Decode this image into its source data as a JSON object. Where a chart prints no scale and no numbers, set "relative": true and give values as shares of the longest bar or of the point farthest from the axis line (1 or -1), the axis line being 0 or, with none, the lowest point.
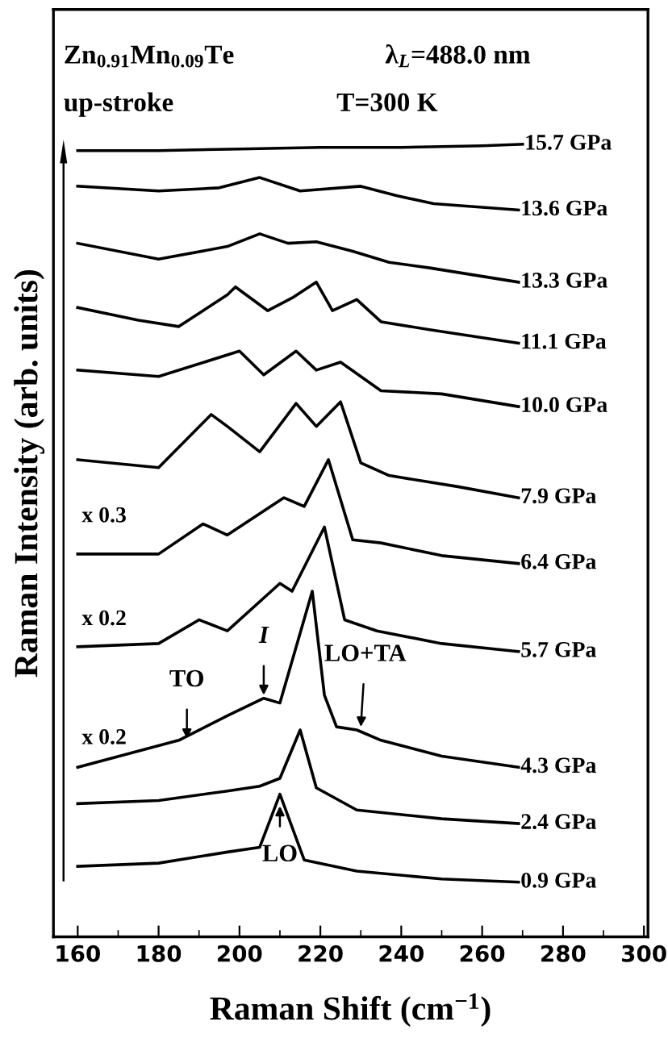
{
  "chart_data": {
    "type": "line",
    "relative": true,
    "xlabel": "Raman Shift (cm$^{−1}$)",
    "ylabel": "Raman Intensity (arb. units)",
    "xlim": [
      154,
      301
    ],
    "xticks": [
      160,
      180,
      200,
      220,
      240,
      260,
      280,
      300
    ],
    "grid": false,
    "marker": "none",
    "line_style": "solid",
    "series": [
      {
        "name": "15.7 GPa",
        "color": "#000000",
        "x": [
          160,
          180,
          200,
          220,
          240,
          260,
          270
        ],
        "values": [
          0.992,
          0.992,
          0.994,
          0.996,
          0.996,
          0.998,
          1.0
        ]
      },
      {
        "name": "13.6 GPa",
        "color": "#000000",
        "x": [
          160,
          180,
          195,
          205,
          215,
          230,
          239,
          248,
          269
        ],
        "values": [
          0.947,
          0.941,
          0.945,
          0.958,
          0.941,
          0.947,
          0.935,
          0.925,
          0.917
        ]
      },
      {
        "name": "13.3 GPa",
        "color": "#000000",
        "x": [
          160,
          180,
          197,
          205,
          212,
          219,
          228,
          237,
          247,
          269
        ],
        "values": [
          0.875,
          0.855,
          0.871,
          0.887,
          0.875,
          0.877,
          0.865,
          0.851,
          0.844,
          0.826
        ]
      },
      {
        "name": "11.1 GPa",
        "color": "#000000",
        "x": [
          160,
          175,
          185,
          197,
          199,
          207,
          213,
          219,
          223,
          229,
          235,
          247,
          269
        ],
        "values": [
          0.794,
          0.778,
          0.77,
          0.81,
          0.82,
          0.79,
          0.806,
          0.826,
          0.79,
          0.804,
          0.776,
          0.766,
          0.749
        ]
      },
      {
        "name": "10.0 GPa",
        "color": "#000000",
        "x": [
          160,
          180,
          200,
          206,
          214,
          219,
          225,
          235,
          250,
          269
        ],
        "values": [
          0.715,
          0.707,
          0.739,
          0.709,
          0.739,
          0.715,
          0.725,
          0.689,
          0.685,
          0.669
        ]
      },
      {
        "name": "7.9 GPa",
        "color": "#000000",
        "x": [
          160,
          180,
          193,
          197,
          205,
          214,
          219,
          225,
          230,
          237,
          254,
          269
        ],
        "values": [
          0.602,
          0.592,
          0.659,
          0.644,
          0.612,
          0.673,
          0.644,
          0.675,
          0.598,
          0.582,
          0.568,
          0.554
        ]
      },
      {
        "name": "6.4 GPa",
        "color": "#000000",
        "x": [
          160,
          180,
          191,
          197,
          211,
          216,
          222,
          228,
          235,
          250,
          269
        ],
        "values": [
          0.483,
          0.483,
          0.521,
          0.507,
          0.554,
          0.543,
          0.602,
          0.501,
          0.497,
          0.481,
          0.471
        ]
      },
      {
        "name": "5.7 GPa",
        "color": "#000000",
        "x": [
          160,
          180,
          190,
          197,
          210,
          213,
          221,
          226,
          234,
          250,
          269
        ],
        "values": [
          0.366,
          0.37,
          0.4,
          0.386,
          0.446,
          0.436,
          0.517,
          0.4,
          0.386,
          0.37,
          0.36
        ]
      },
      {
        "name": "4.3 GPa",
        "color": "#000000",
        "x": [
          160,
          185,
          197,
          206,
          210,
          218,
          221,
          224,
          229,
          235,
          250,
          269
        ],
        "values": [
          0.214,
          0.248,
          0.279,
          0.301,
          0.295,
          0.436,
          0.305,
          0.265,
          0.261,
          0.248,
          0.228,
          0.214
        ]
      },
      {
        "name": "2.4 GPa",
        "color": "#000000",
        "x": [
          160,
          180,
          197,
          205,
          210,
          215,
          219,
          229,
          250,
          269
        ],
        "values": [
          0.168,
          0.172,
          0.184,
          0.19,
          0.2,
          0.261,
          0.188,
          0.16,
          0.149,
          0.143
        ]
      },
      {
        "name": "0.9 GPa",
        "color": "#000000",
        "x": [
          160,
          180,
          197,
          205,
          210,
          216,
          229,
          250,
          269
        ],
        "values": [
          0.089,
          0.093,
          0.107,
          0.113,
          0.18,
          0.097,
          0.083,
          0.073,
          0.069
        ]
      }
    ],
    "annotations": [
      "Zn$_{0.91}$Mn$_{0.09}$Te",
      "λ$_{L}$=488.0 nm",
      "up-stroke",
      "T=300 K",
      "x 0.3",
      "x 0.2",
      "x 0.2",
      {
        "text": "TO",
        "x": 187,
        "y": 0.25
      },
      {
        "text": "I",
        "x": 206,
        "y": 0.305
      },
      {
        "text": "LO+TA",
        "x": 230,
        "y": 0.265
      },
      {
        "text": "LO",
        "x": 210,
        "y": 0.165
      }
    ]
  }
}
